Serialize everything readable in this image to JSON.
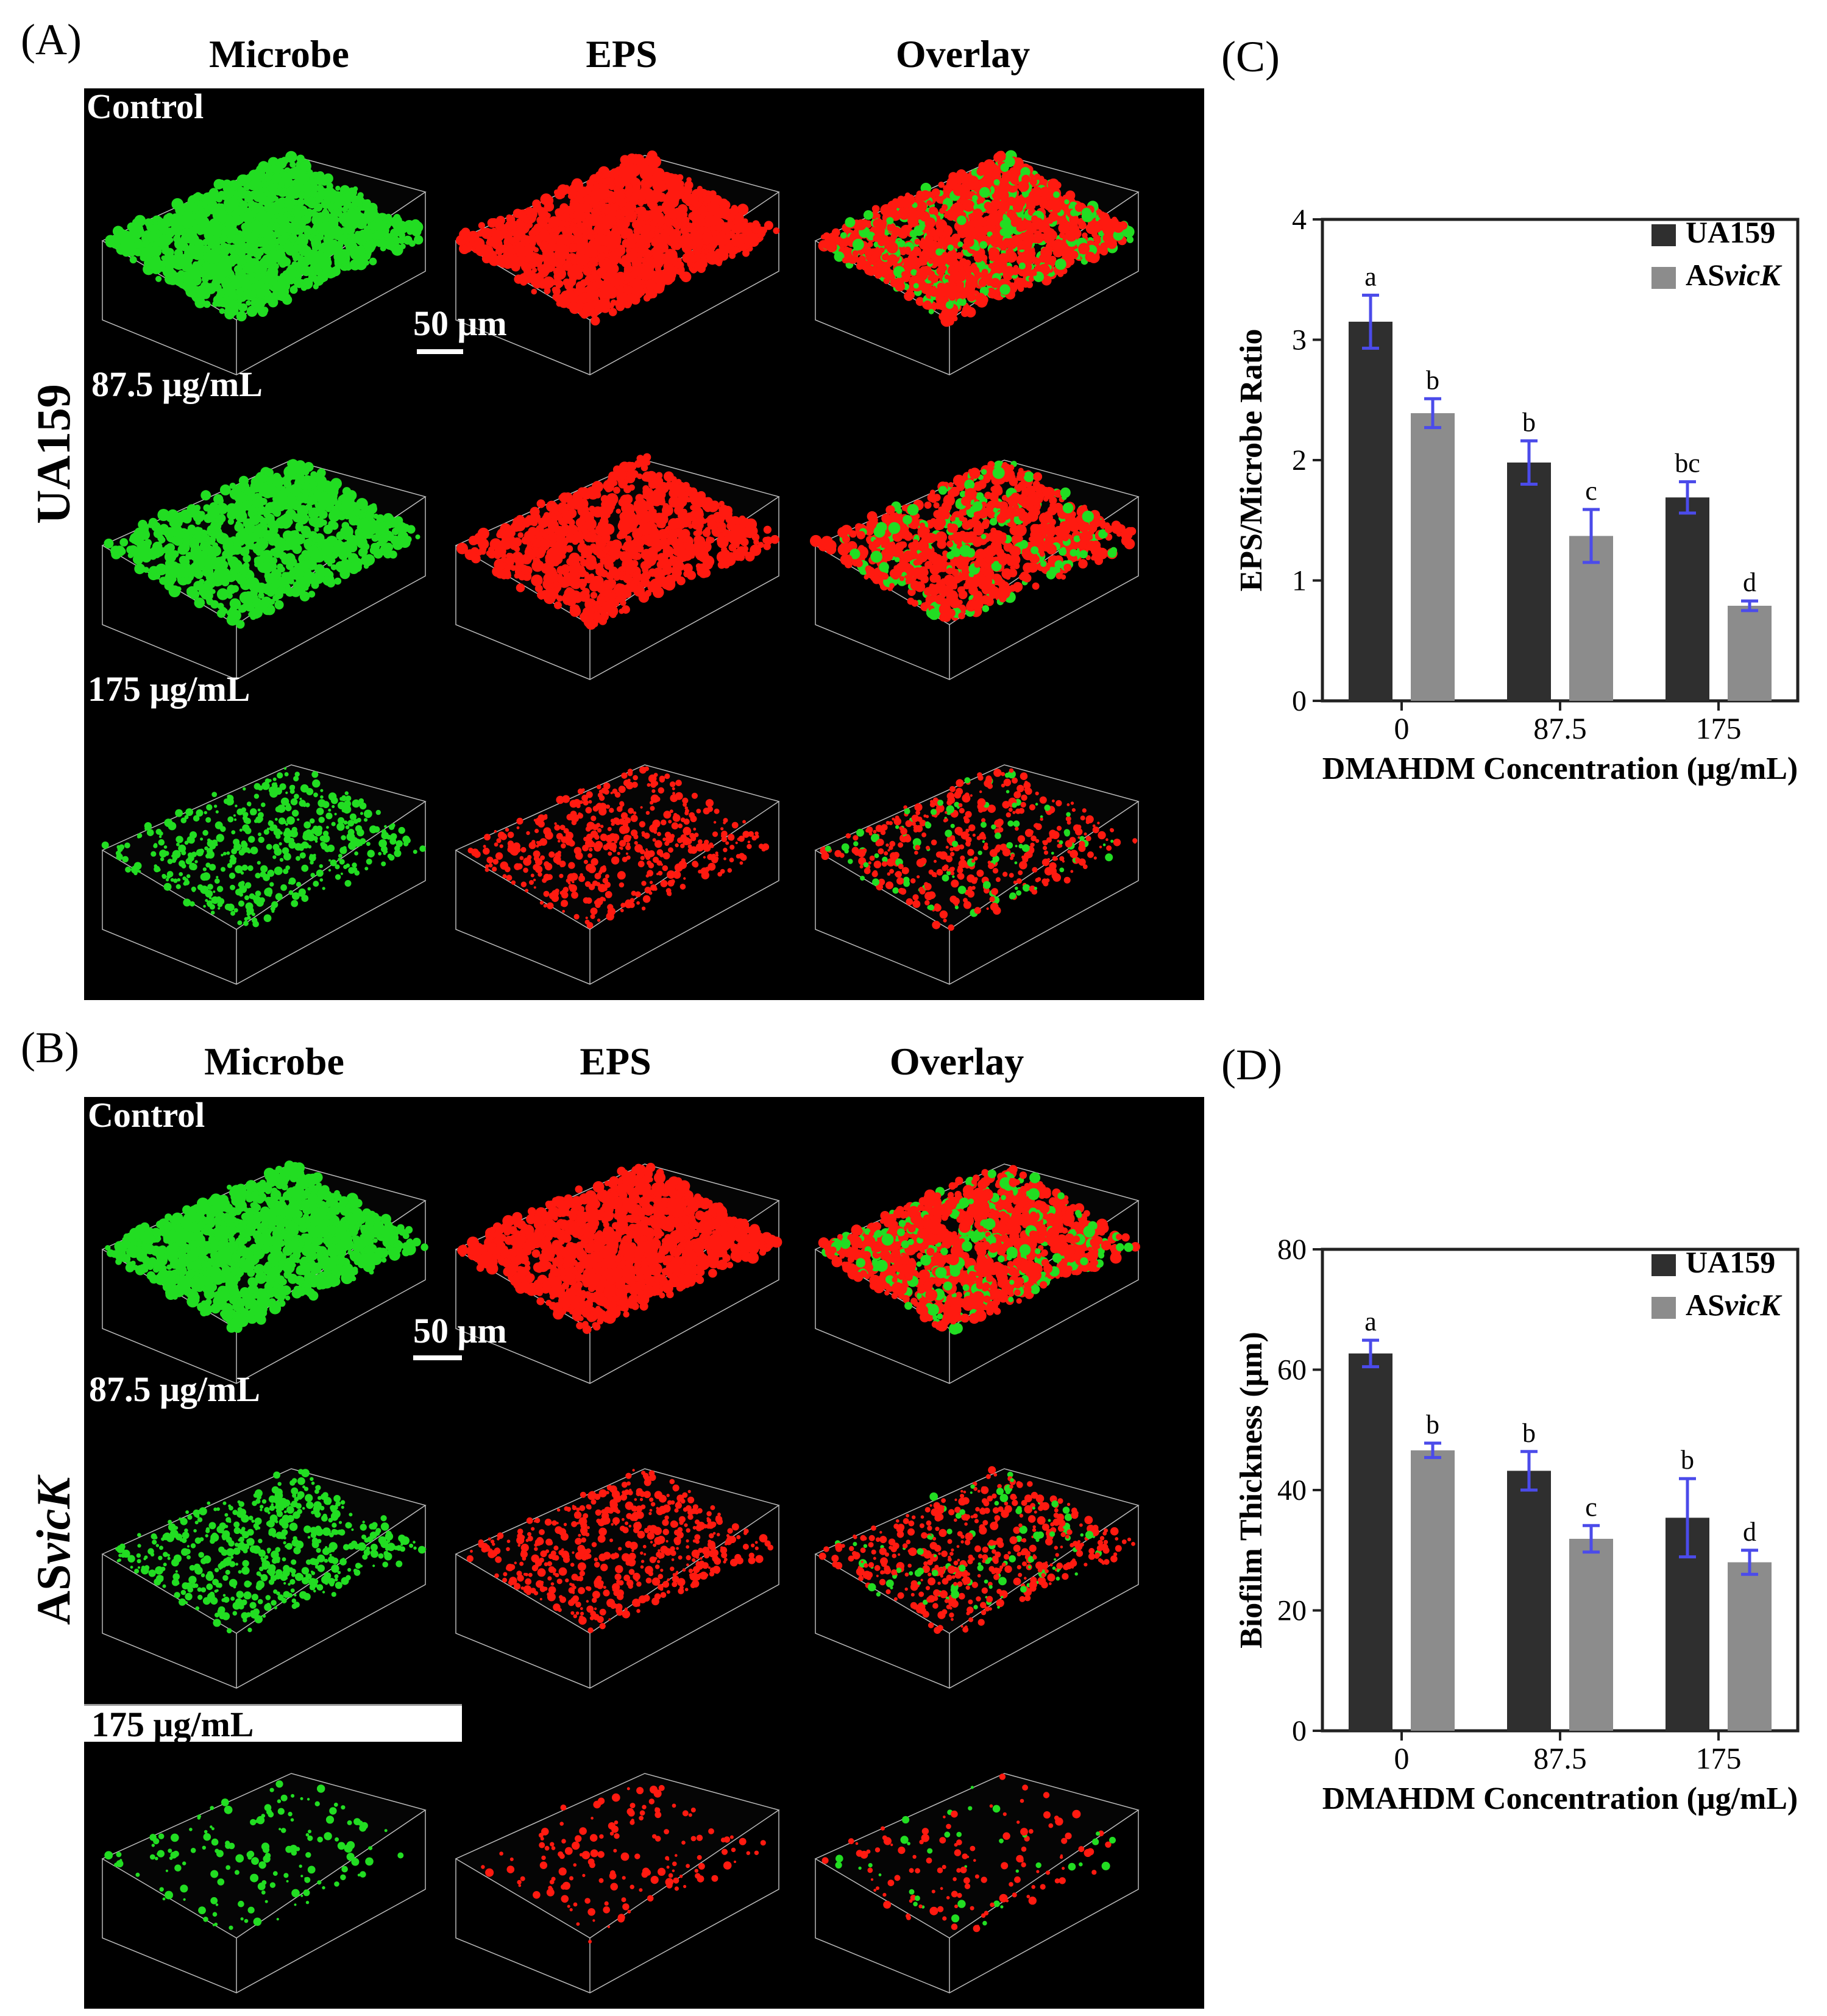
{
  "panels": {
    "A": {
      "letter": "(A)",
      "strain_label": "UA159",
      "columns": [
        "Microbe",
        "EPS",
        "Overlay"
      ],
      "rows": [
        "Control",
        "87.5 μg/mL",
        "175 μg/mL"
      ],
      "scale_bar": "50 μm"
    },
    "B": {
      "letter": "(B)",
      "strain_label_prefix": "AS",
      "strain_label_italic": "vicK",
      "columns": [
        "Microbe",
        "EPS",
        "Overlay"
      ],
      "rows": [
        "Control",
        "87.5 μg/mL",
        "175 μg/mL"
      ],
      "scale_bar": "50 μm"
    },
    "C": {
      "letter": "(C)"
    },
    "D": {
      "letter": "(D)"
    }
  },
  "colors": {
    "microbe": "#22dd22",
    "eps": "#ff1a10",
    "ua159_bar": "#2f2f2f",
    "asvick_bar": "#8c8c8c",
    "error_bar": "#4b4bea"
  },
  "chart_data": [
    {
      "type": "bar",
      "panel": "C",
      "categories": [
        "0",
        "87.5",
        "175"
      ],
      "xlabel": "DMAHDM Concentration (μg/mL)",
      "ylabel": "EPS/Microbe Ratio",
      "ylim": [
        0,
        4
      ],
      "yticks": [
        0,
        1,
        2,
        3,
        4
      ],
      "legend_position": "top-right",
      "series": [
        {
          "name": "UA159",
          "name_prefix": "UA159",
          "name_italic": "",
          "values": [
            3.15,
            1.98,
            1.69
          ],
          "errors": [
            0.22,
            0.18,
            0.13
          ],
          "letters": [
            "a",
            "b",
            "bc"
          ]
        },
        {
          "name": "ASvicK",
          "name_prefix": "AS",
          "name_italic": "vicK",
          "values": [
            2.39,
            1.37,
            0.79
          ],
          "errors": [
            0.12,
            0.22,
            0.04
          ],
          "letters": [
            "b",
            "c",
            "d"
          ]
        }
      ]
    },
    {
      "type": "bar",
      "panel": "D",
      "categories": [
        "0",
        "87.5",
        "175"
      ],
      "xlabel": "DMAHDM Concentration (μg/mL)",
      "ylabel": "Biofilm Thickness (μm)",
      "ylim": [
        0,
        80
      ],
      "yticks": [
        0,
        20,
        40,
        60,
        80
      ],
      "legend_position": "top-right",
      "series": [
        {
          "name": "UA159",
          "name_prefix": "UA159",
          "name_italic": "",
          "values": [
            62.7,
            43.2,
            35.4
          ],
          "errors": [
            2.2,
            3.2,
            6.5
          ],
          "letters": [
            "a",
            "b",
            "b"
          ]
        },
        {
          "name": "ASvicK",
          "name_prefix": "AS",
          "name_italic": "vicK",
          "values": [
            46.6,
            31.9,
            28.0
          ],
          "errors": [
            1.2,
            2.2,
            2.0
          ],
          "letters": [
            "b",
            "c",
            "d"
          ]
        }
      ]
    }
  ]
}
